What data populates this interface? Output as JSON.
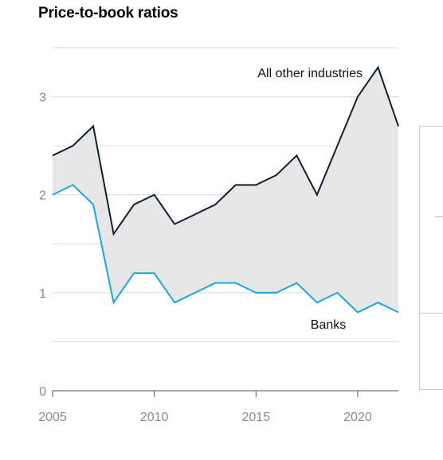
{
  "chart_data": {
    "type": "line",
    "title": "Price-to-book ratios",
    "xlabel": "",
    "ylabel": "",
    "x": [
      2005,
      2006,
      2007,
      2008,
      2009,
      2010,
      2011,
      2012,
      2013,
      2014,
      2015,
      2016,
      2017,
      2018,
      2019,
      2020,
      2021,
      2022
    ],
    "xlim": [
      2005,
      2022
    ],
    "ylim": [
      0,
      3.5
    ],
    "xticks": [
      2005,
      2010,
      2015,
      2020
    ],
    "yticks": [
      0,
      1,
      2,
      3
    ],
    "grid": true,
    "fill_between_series": true,
    "series": [
      {
        "name": "All other industries",
        "color": "#0d2133",
        "values": [
          2.4,
          2.5,
          2.7,
          1.6,
          1.9,
          2.0,
          1.7,
          1.8,
          1.9,
          2.1,
          2.1,
          2.2,
          2.4,
          2.0,
          2.5,
          3.0,
          3.3,
          2.7
        ]
      },
      {
        "name": "Banks",
        "color": "#1aa7e0",
        "values": [
          2.0,
          2.1,
          1.9,
          0.9,
          1.2,
          1.2,
          0.9,
          1.0,
          1.1,
          1.1,
          1.0,
          1.0,
          1.1,
          0.9,
          1.0,
          0.8,
          0.9,
          0.8
        ]
      }
    ],
    "fill_color": "#e6e6e6"
  }
}
